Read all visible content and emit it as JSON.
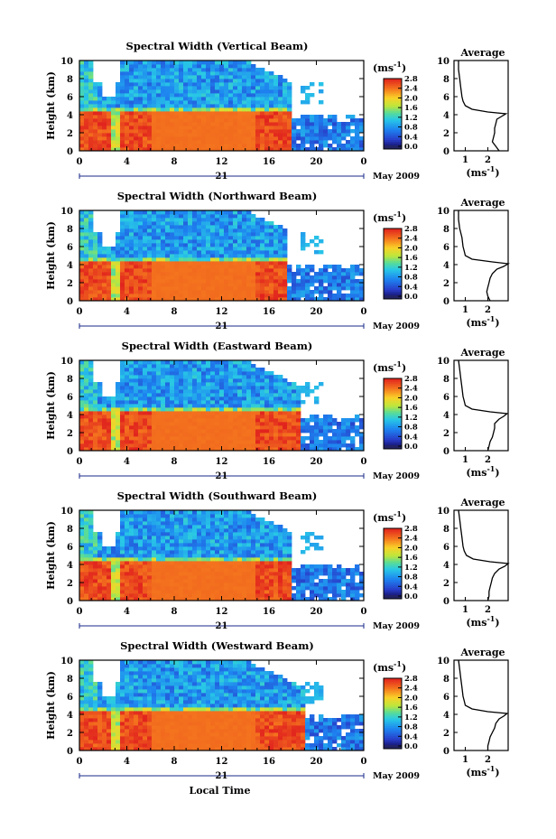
{
  "chart_data": [
    {
      "type": "heatmap",
      "title": "Spectral Width (Vertical Beam)",
      "ylabel": "Height (km)",
      "xlabel": "",
      "xlim": [
        0,
        24
      ],
      "ylim": [
        0,
        10
      ],
      "x_ticks": [
        "0",
        "4",
        "8",
        "12",
        "16",
        "20",
        "0"
      ],
      "y_ticks": [
        "0",
        "2",
        "4",
        "6",
        "8",
        "10"
      ],
      "date_day": "21",
      "date_label": "May 2009",
      "colorbar": {
        "unit": "(ms-1)",
        "ticks": [
          "0.0",
          "0.4",
          "0.8",
          "1.2",
          "1.6",
          "2.0",
          "2.4",
          "2.8"
        ],
        "range": [
          0,
          2.8
        ]
      },
      "layer_top_km": 4.5,
      "echo_end_hour": 18,
      "average_profile": {
        "title": "Average",
        "xlabel": "(ms-1)",
        "x_ticks": [
          "1",
          "2"
        ],
        "y_ticks": [
          "0",
          "2",
          "4",
          "6",
          "8",
          "10"
        ],
        "height_km": [
          0,
          0.5,
          1,
          1.5,
          2,
          2.5,
          3,
          3.5,
          3.8,
          4.1,
          4.3,
          4.6,
          5,
          5.5,
          6,
          7,
          8,
          9,
          10
        ],
        "width_ms": [
          2.5,
          2.35,
          2.2,
          2.25,
          2.3,
          2.3,
          2.35,
          2.4,
          2.6,
          2.8,
          2.0,
          1.3,
          1.0,
          0.9,
          0.85,
          0.8,
          0.75,
          0.7,
          0.7
        ]
      }
    },
    {
      "type": "heatmap",
      "title": "Spectral Width (Northward Beam)",
      "ylabel": "Height (km)",
      "xlabel": "",
      "xlim": [
        0,
        24
      ],
      "ylim": [
        0,
        10
      ],
      "x_ticks": [
        "0",
        "4",
        "8",
        "12",
        "16",
        "20",
        "0"
      ],
      "y_ticks": [
        "0",
        "2",
        "4",
        "6",
        "8",
        "10"
      ],
      "date_day": "21",
      "date_label": "May 2009",
      "colorbar": {
        "unit": "(ms-1)",
        "ticks": [
          "0.0",
          "0.4",
          "0.8",
          "1.2",
          "1.6",
          "2.0",
          "2.4",
          "2.8"
        ],
        "range": [
          0,
          2.8
        ]
      },
      "layer_top_km": 4.6,
      "echo_end_hour": 17.5,
      "average_profile": {
        "title": "Average",
        "xlabel": "(ms-1)",
        "x_ticks": [
          "1",
          "2"
        ],
        "y_ticks": [
          "0",
          "2",
          "4",
          "6",
          "8",
          "10"
        ],
        "height_km": [
          0,
          0.5,
          1,
          1.5,
          2,
          2.5,
          3,
          3.5,
          3.8,
          4.1,
          4.3,
          4.6,
          5,
          5.5,
          6,
          7,
          8,
          9,
          10
        ],
        "width_ms": [
          2.1,
          2.0,
          1.95,
          2.0,
          2.05,
          2.1,
          2.2,
          2.4,
          2.7,
          2.9,
          2.2,
          1.3,
          1.0,
          0.95,
          0.9,
          0.85,
          0.75,
          0.7,
          0.7
        ]
      }
    },
    {
      "type": "heatmap",
      "title": "Spectral Width (Eastward Beam)",
      "ylabel": "Height (km)",
      "xlabel": "",
      "xlim": [
        0,
        24
      ],
      "ylim": [
        0,
        10
      ],
      "x_ticks": [
        "0",
        "4",
        "8",
        "12",
        "16",
        "20",
        "0"
      ],
      "y_ticks": [
        "0",
        "2",
        "4",
        "6",
        "8",
        "10"
      ],
      "date_day": "21",
      "date_label": "May 2009",
      "colorbar": {
        "unit": "(ms-1)",
        "ticks": [
          "0.0",
          "0.4",
          "0.8",
          "1.2",
          "1.6",
          "2.0",
          "2.4",
          "2.8"
        ],
        "range": [
          0,
          2.8
        ]
      },
      "layer_top_km": 4.5,
      "echo_end_hour": 18.5,
      "average_profile": {
        "title": "Average",
        "xlabel": "(ms-1)",
        "x_ticks": [
          "1",
          "2"
        ],
        "y_ticks": [
          "0",
          "2",
          "4",
          "6",
          "8",
          "10"
        ],
        "height_km": [
          0,
          0.5,
          1,
          1.5,
          2,
          2.5,
          3,
          3.5,
          3.8,
          4.1,
          4.3,
          4.6,
          5,
          5.5,
          6,
          7,
          8,
          9,
          10
        ],
        "width_ms": [
          2.0,
          2.05,
          2.1,
          2.2,
          2.25,
          2.3,
          2.3,
          2.5,
          2.7,
          2.85,
          2.1,
          1.3,
          1.0,
          0.95,
          0.9,
          0.85,
          0.8,
          0.75,
          0.7
        ]
      }
    },
    {
      "type": "heatmap",
      "title": "Spectral Width (Southward Beam)",
      "ylabel": "Height (km)",
      "xlabel": "",
      "xlim": [
        0,
        24
      ],
      "ylim": [
        0,
        10
      ],
      "x_ticks": [
        "0",
        "4",
        "8",
        "12",
        "16",
        "20",
        "0"
      ],
      "y_ticks": [
        "0",
        "2",
        "4",
        "6",
        "8",
        "10"
      ],
      "date_day": "21",
      "date_label": "May 2009",
      "colorbar": {
        "unit": "(ms-1)",
        "ticks": [
          "0.0",
          "0.4",
          "0.8",
          "1.2",
          "1.6",
          "2.0",
          "2.4",
          "2.8"
        ],
        "range": [
          0,
          2.8
        ]
      },
      "layer_top_km": 4.5,
      "echo_end_hour": 18,
      "average_profile": {
        "title": "Average",
        "xlabel": "(ms-1)",
        "x_ticks": [
          "1",
          "2"
        ],
        "y_ticks": [
          "0",
          "2",
          "4",
          "6",
          "8",
          "10"
        ],
        "height_km": [
          0,
          0.5,
          1,
          1.5,
          2,
          2.5,
          3,
          3.5,
          3.8,
          4.1,
          4.3,
          4.6,
          5,
          5.5,
          6,
          7,
          8,
          9,
          10
        ],
        "width_ms": [
          2.0,
          2.05,
          2.05,
          2.1,
          2.15,
          2.2,
          2.3,
          2.5,
          2.75,
          2.9,
          2.1,
          1.35,
          1.05,
          0.95,
          0.9,
          0.85,
          0.8,
          0.75,
          0.7
        ]
      }
    },
    {
      "type": "heatmap",
      "title": "Spectral Width (Westward Beam)",
      "ylabel": "Height (km)",
      "xlabel": "Local Time",
      "xlim": [
        0,
        24
      ],
      "ylim": [
        0,
        10
      ],
      "x_ticks": [
        "0",
        "4",
        "8",
        "12",
        "16",
        "20",
        "0"
      ],
      "y_ticks": [
        "0",
        "2",
        "4",
        "6",
        "8",
        "10"
      ],
      "date_day": "21",
      "date_label": "May 2009",
      "colorbar": {
        "unit": "(ms-1)",
        "ticks": [
          "0.0",
          "0.4",
          "0.8",
          "1.2",
          "1.6",
          "2.0",
          "2.4",
          "2.8"
        ],
        "range": [
          0,
          2.8
        ]
      },
      "layer_top_km": 4.3,
      "echo_end_hour": 19,
      "average_profile": {
        "title": "Average",
        "xlabel": "(ms-1)",
        "x_ticks": [
          "1",
          "2"
        ],
        "y_ticks": [
          "0",
          "2",
          "4",
          "6",
          "8",
          "10"
        ],
        "height_km": [
          0,
          0.5,
          1,
          1.5,
          2,
          2.5,
          3,
          3.5,
          3.8,
          4.1,
          4.3,
          4.6,
          5,
          5.5,
          6,
          7,
          8,
          9,
          10
        ],
        "width_ms": [
          2.0,
          2.0,
          2.05,
          2.1,
          2.2,
          2.3,
          2.35,
          2.5,
          2.7,
          2.85,
          2.0,
          1.3,
          1.0,
          0.95,
          0.9,
          0.85,
          0.8,
          0.75,
          0.7
        ]
      }
    }
  ]
}
